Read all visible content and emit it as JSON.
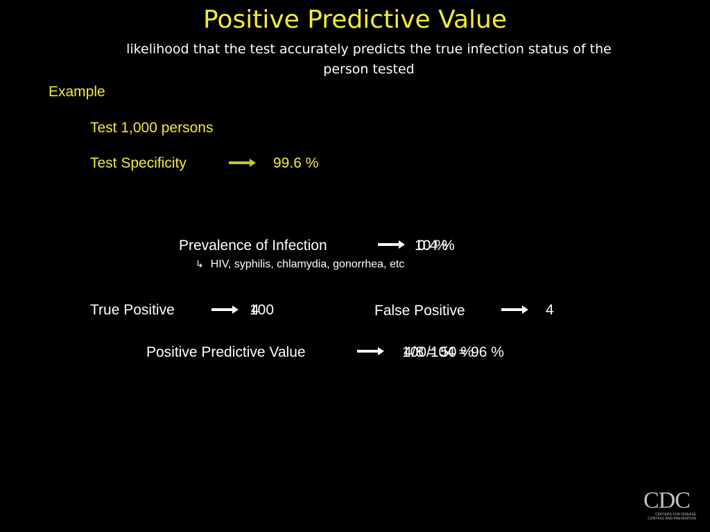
{
  "slide": {
    "title": "Positive Predictive Value",
    "subtitle": "likelihood that the test accurately predicts the true infection status of the person tested",
    "example_label": "Example",
    "test_persons": "Test 1,000 persons",
    "specificity": {
      "label": "Test Specificity",
      "value": "99.6 %"
    },
    "prevalence": {
      "label": "Prevalence of Infection",
      "values": [
        "10 %",
        "0.4 %"
      ]
    },
    "diseases": "HIV, syphilis, chlamydia, gonorrhea, etc",
    "true_positive": {
      "label": "True Positive",
      "values": [
        "100",
        "4"
      ]
    },
    "false_positive": {
      "label": "False Positive",
      "value": "4"
    },
    "ppv": {
      "label": "Positive Predictive Value",
      "values": [
        "100/104 ≈ 96 %",
        "4/8 = 50 %"
      ]
    },
    "logo": {
      "text": "CDC",
      "subtext": "CENTERS FOR DISEASE CONTROL AND PREVENTION"
    }
  },
  "colors": {
    "accent": "#f2ec3a",
    "text": "#ffffff",
    "background": "#000000"
  }
}
